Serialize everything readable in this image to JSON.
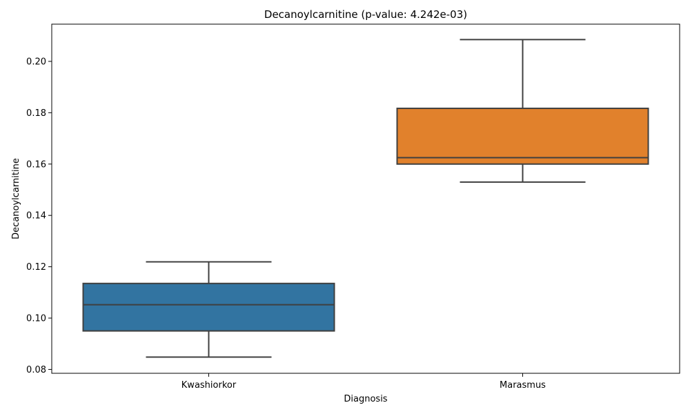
{
  "chart_data": {
    "type": "box",
    "title": "Decanoylcarnitine (p-value: 4.242e-03)",
    "xlabel": "Diagnosis",
    "ylabel": "Decanoylcarnitine",
    "ylim": [
      0.0785,
      0.2145
    ],
    "yticks": [
      0.08,
      0.1,
      0.12,
      0.14,
      0.16,
      0.18,
      0.2
    ],
    "ytick_labels": [
      "0.08",
      "0.10",
      "0.12",
      "0.14",
      "0.16",
      "0.18",
      "0.20"
    ],
    "grid": false,
    "categories": [
      "Kwashiorkor",
      "Marasmus"
    ],
    "boxes": [
      {
        "category": "Kwashiorkor",
        "whisker_low": 0.0848,
        "q1": 0.095,
        "median": 0.1052,
        "q3": 0.1135,
        "whisker_high": 0.1219,
        "color": "#3274a1"
      },
      {
        "category": "Marasmus",
        "whisker_low": 0.153,
        "q1": 0.16,
        "median": 0.1625,
        "q3": 0.1817,
        "whisker_high": 0.2085,
        "color": "#e1812c"
      }
    ],
    "line_color": "#3f3f3f"
  }
}
